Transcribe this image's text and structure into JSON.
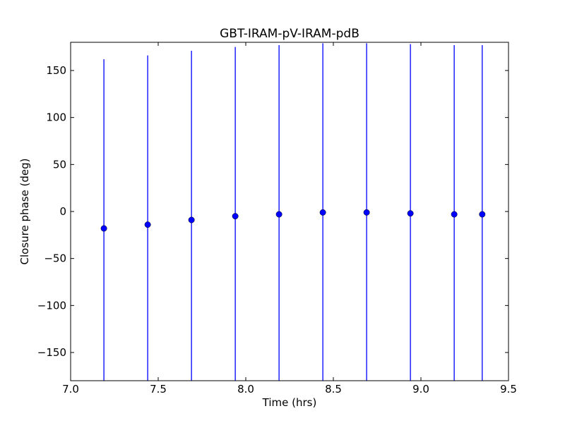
{
  "chart_data": {
    "type": "scatter",
    "title": "GBT-IRAM-pV-IRAM-pdB",
    "xlabel": "Time (hrs)",
    "ylabel": "Closure phase (deg)",
    "xlim": [
      7.0,
      9.5
    ],
    "ylim": [
      -180,
      180
    ],
    "xticks": [
      7.0,
      7.5,
      8.0,
      8.5,
      9.0,
      9.5
    ],
    "xtick_labels": [
      "7.0",
      "7.5",
      "8.0",
      "8.5",
      "9.0",
      "9.5"
    ],
    "yticks": [
      150,
      100,
      50,
      0,
      -50,
      -100,
      -150
    ],
    "ytick_labels": [
      "150",
      "100",
      "50",
      "0",
      "−50",
      "−100",
      "−150"
    ],
    "grid": false,
    "error_bars": true,
    "series": [
      {
        "color": "#0000ff",
        "marker": "circle",
        "x": [
          7.19,
          7.44,
          7.69,
          7.94,
          8.19,
          8.44,
          8.69,
          8.94,
          9.19,
          9.35
        ],
        "y": [
          -18,
          -14,
          -9,
          -5,
          -3,
          -1,
          -1,
          -2,
          -3,
          -3
        ],
        "yerr": [
          180,
          180,
          180,
          180,
          180,
          180,
          180,
          180,
          180,
          180
        ]
      }
    ]
  }
}
